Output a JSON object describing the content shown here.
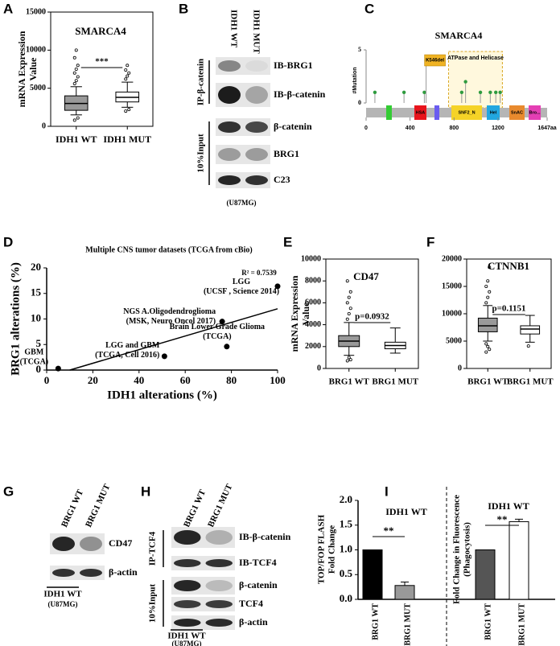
{
  "panel_labels": [
    "A",
    "B",
    "C",
    "D",
    "E",
    "F",
    "G",
    "H",
    "I"
  ],
  "chart_data": [
    {
      "type": "box",
      "title": "SMARCA4",
      "ylabel": [
        "mRNA Expression",
        "Value"
      ],
      "categories": [
        "IDH1 WT",
        "IDH1 MUT"
      ],
      "ylim": [
        0,
        15000
      ],
      "yticks": [
        0,
        5000,
        10000,
        15000
      ],
      "significance": "***",
      "colors": [
        "#999999",
        "#ffffff"
      ],
      "boxes": [
        {
          "min": 1500,
          "q1": 2100,
          "median": 3000,
          "q3": 4000,
          "max": 5200,
          "outliers": [
            5600,
            6000,
            6500,
            7000,
            7500,
            8000,
            9000,
            10000,
            1100,
            800
          ]
        },
        {
          "min": 2500,
          "q1": 3200,
          "median": 3800,
          "q3": 4500,
          "max": 5800,
          "outliers": [
            6200,
            6600,
            7000,
            7400,
            8000,
            2200,
            2000
          ]
        }
      ]
    },
    {
      "type": "lollipop",
      "title": "SMARCA4",
      "ylabel": "#Mutation",
      "xlim": [
        0,
        1647
      ],
      "ylim": [
        0,
        5
      ],
      "yticks": [
        0,
        5
      ],
      "xticks": [
        0,
        400,
        800,
        1200,
        {
          "value": 1647,
          "label": "1647aa"
        }
      ],
      "x": [
        80,
        345,
        530,
        546,
        870,
        905,
        1040,
        1130,
        1180,
        1220
      ],
      "values": [
        1,
        1,
        1,
        4,
        1,
        2,
        1,
        1,
        1,
        1
      ],
      "annotation": {
        "text": "K546del",
        "x": 546
      },
      "region": {
        "label": "ATPase and Helicase",
        "start": 750,
        "end": 1240
      },
      "domains": [
        {
          "start": 183,
          "end": 234,
          "color": "#33cc33"
        },
        {
          "name": "HSA",
          "start": 439,
          "end": 549,
          "color": "#e8141c"
        },
        {
          "start": 622,
          "end": 666,
          "color": "#6a5cf0"
        },
        {
          "name": "SNF2_N",
          "start": 776,
          "end": 1054,
          "color": "#f5d327"
        },
        {
          "name": "Hel",
          "start": 1098,
          "end": 1215,
          "color": "#22a7e0"
        },
        {
          "name": "SnAC",
          "start": 1303,
          "end": 1442,
          "color": "#e88a2e"
        },
        {
          "name": "Bro...",
          "start": 1479,
          "end": 1589,
          "color": "#e43fb4"
        }
      ]
    },
    {
      "type": "scatter",
      "title": "Multiple CNS tumor datasets (TCGA from cBio)",
      "xlabel": "IDH1 alterations (%)",
      "ylabel": "BRG1 alterations (%)",
      "xlim": [
        0,
        100
      ],
      "ylim": [
        0,
        20
      ],
      "xticks": [
        0,
        20,
        40,
        60,
        80,
        100
      ],
      "yticks": [
        0,
        5,
        10,
        15,
        20
      ],
      "x": [
        5,
        51,
        76,
        78,
        100
      ],
      "values": [
        0.3,
        2.7,
        9.5,
        4.6,
        16.4
      ],
      "point_labels": [
        [
          "GBM",
          "(TCGA)"
        ],
        [
          "LGG and GBM",
          "(TCGA, Cell 2016)"
        ],
        [
          "NGS A.Oligodendroglioma",
          "(MSK, Neuro Oncol 2017)"
        ],
        [
          "Brain Lower Grade Glioma",
          "(TCGA)"
        ],
        [
          "LGG",
          "(UCSF , Science 2014)"
        ]
      ],
      "fit_line": {
        "x": [
          10,
          100
        ],
        "y": [
          0,
          12
        ]
      },
      "annotation": "R² = 0.7539"
    },
    {
      "type": "box",
      "title": "CD47",
      "ylabel": [
        "mRNA Expression",
        "Value"
      ],
      "categories": [
        "BRG1 WT",
        "BRG1 MUT"
      ],
      "ylim": [
        0,
        10000
      ],
      "yticks": [
        0,
        2000,
        4000,
        6000,
        8000,
        10000
      ],
      "significance": "p=0.0932",
      "colors": [
        "#999999",
        "#ffffff"
      ],
      "boxes": [
        {
          "min": 1200,
          "q1": 2000,
          "median": 2500,
          "q3": 3000,
          "max": 4200,
          "outliers": [
            4500,
            5000,
            5500,
            6000,
            6500,
            7000,
            8000,
            1000,
            800,
            700
          ]
        },
        {
          "min": 1400,
          "q1": 1800,
          "median": 2100,
          "q3": 2400,
          "max": 3700,
          "outliers": []
        }
      ]
    },
    {
      "type": "box",
      "title": "CTNNB1",
      "categories": [
        "BRG1 WT",
        "BRG1 MUT"
      ],
      "ylim": [
        0,
        20000
      ],
      "yticks": [
        0,
        5000,
        10000,
        15000,
        20000
      ],
      "significance": "p=0.1151",
      "colors": [
        "#999999",
        "#ffffff"
      ],
      "boxes": [
        {
          "min": 5000,
          "q1": 6700,
          "median": 7800,
          "q3": 9200,
          "max": 11500,
          "outliers": [
            12000,
            13000,
            14000,
            15000,
            16000,
            18500,
            4500,
            4000,
            3500,
            3000
          ]
        },
        {
          "min": 4800,
          "q1": 6300,
          "median": 7200,
          "q3": 7800,
          "max": 9700,
          "outliers": [
            4100
          ]
        }
      ]
    },
    {
      "type": "bar",
      "categories": [
        "BRG1 WT",
        "BRG1 MUT",
        "BRG1 WT",
        "BRG1 MUT"
      ],
      "values": [
        1,
        0.28,
        1,
        1.57
      ],
      "errors": [
        0,
        0.07,
        0,
        0.05
      ],
      "colors": [
        "#000000",
        "#999999",
        "#555555",
        "#ffffff"
      ],
      "ylim": [
        0,
        2
      ],
      "yticks": [
        {
          "value": 0,
          "label": "0.0"
        },
        {
          "value": 0.5,
          "label": "0.5"
        },
        {
          "value": 1,
          "label": "1.0"
        },
        {
          "value": 1.5,
          "label": "1.5"
        },
        {
          "value": 2,
          "label": "2.0"
        }
      ],
      "group_labels": [
        "IDH1 WT",
        "IDH1 WT"
      ],
      "significance": [
        "**",
        "**"
      ],
      "ylabels": [
        [
          "TOP/FOP FLASH",
          "Fold Change"
        ],
        [
          "Fold Change in Fluorescence",
          "(Phagocytosis)"
        ]
      ]
    }
  ],
  "blots": [
    {
      "lanes": [
        "IDH1 WT",
        "IDH1 MUT"
      ],
      "rows": [
        "IB-BRG1",
        "IB-β-catenin",
        "β-catenin",
        "BRG1",
        "C23"
      ],
      "groups": [
        "IP-β-catenin",
        "10%Input"
      ],
      "footer": [
        "(U87MG)"
      ]
    },
    {
      "lanes": [
        "BRG1 WT",
        "BRG1 MUT"
      ],
      "rows": [
        "CD47",
        "β-actin"
      ],
      "footer": [
        "IDH1 WT",
        "(U87MG)"
      ]
    },
    {
      "lanes": [
        "BRG1 WT",
        "BRG1 MUT"
      ],
      "rows": [
        "IB-β-catenin",
        "IB-TCF4",
        "β-catenin",
        "TCF4",
        "β-actin"
      ],
      "groups": [
        "IP-TCF4",
        "10%Input"
      ],
      "footer": [
        "IDH1 WT",
        "(U87MG)"
      ]
    }
  ]
}
